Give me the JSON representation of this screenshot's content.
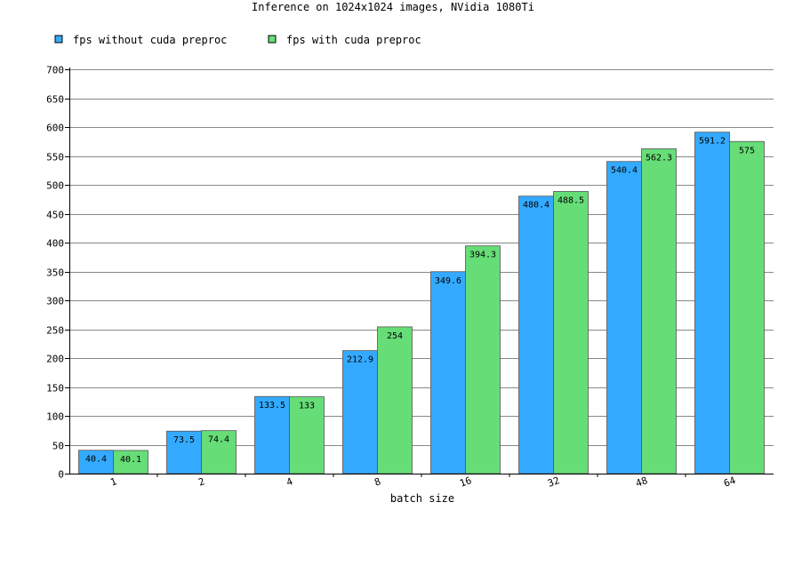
{
  "chart_data": {
    "type": "bar",
    "title": "Inference on 1024x1024 images, NVidia 1080Ti",
    "xlabel": "batch size",
    "ylabel": "",
    "categories": [
      "1",
      "2",
      "4",
      "8",
      "16",
      "32",
      "48",
      "64"
    ],
    "series": [
      {
        "name": "fps without cuda preproc",
        "color": "#33aaff",
        "values": [
          40.4,
          73.5,
          133.5,
          212.9,
          349.6,
          480.4,
          540.4,
          591.2
        ],
        "labels": [
          "40.4",
          "73.5",
          "133.5",
          "212.9",
          "349.6",
          "480.4",
          "540.4",
          "591.2"
        ]
      },
      {
        "name": "fps with cuda preproc",
        "color": "#66dd77",
        "values": [
          40.1,
          74.4,
          133,
          254,
          394.3,
          488.5,
          562.3,
          575
        ],
        "labels": [
          "40.1",
          "74.4",
          "133",
          "254",
          "394.3",
          "488.5",
          "562.3",
          "575"
        ]
      }
    ],
    "ylim": [
      0,
      700
    ],
    "yticks": [
      0,
      50,
      100,
      150,
      200,
      250,
      300,
      350,
      400,
      450,
      500,
      550,
      600,
      650,
      700
    ],
    "grid": true,
    "legend_position": "top-left"
  }
}
